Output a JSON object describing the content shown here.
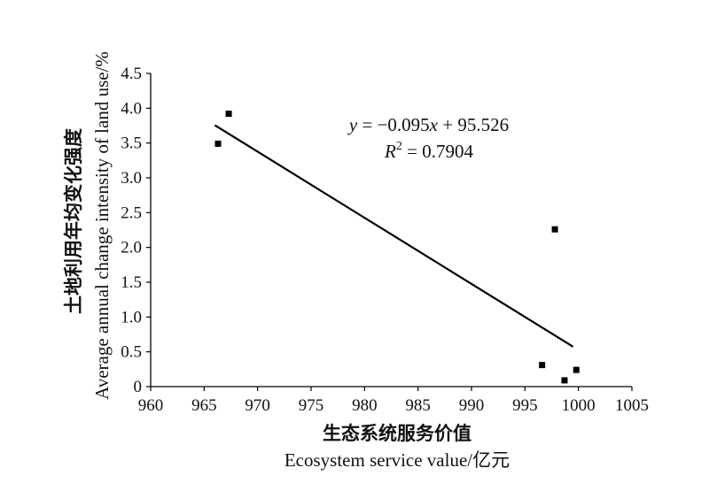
{
  "chart_data": {
    "type": "scatter",
    "title": "",
    "xlabel_cn": "生态系统服务价值",
    "xlabel_en": "Ecosystem service value/亿元",
    "ylabel_cn": "土地利用年均变化强度",
    "ylabel_en": "Average annual change intensity of land use/%",
    "xlim": [
      960,
      1005
    ],
    "ylim": [
      0,
      4.5
    ],
    "x_ticks": [
      960,
      965,
      970,
      975,
      980,
      985,
      990,
      995,
      1000,
      1005
    ],
    "x_tick_labels": [
      "960",
      "965",
      "970",
      "975",
      "980",
      "985",
      "990",
      "995",
      "1000",
      "1005"
    ],
    "y_ticks": [
      0,
      0.5,
      1.0,
      1.5,
      2.0,
      2.5,
      3.0,
      3.5,
      4.0,
      4.5
    ],
    "y_tick_labels": [
      "0",
      "0.5",
      "1.0",
      "1.5",
      "2.0",
      "2.5",
      "3.0",
      "3.5",
      "4.0",
      "4.5"
    ],
    "grid": false,
    "legend": "none",
    "points": [
      {
        "x": 966.3,
        "y": 3.49
      },
      {
        "x": 967.3,
        "y": 3.92
      },
      {
        "x": 996.6,
        "y": 0.31
      },
      {
        "x": 997.8,
        "y": 2.26
      },
      {
        "x": 998.7,
        "y": 0.09
      },
      {
        "x": 999.8,
        "y": 0.24
      }
    ],
    "trendline": {
      "slope": -0.095,
      "intercept": 95.526,
      "x_range": [
        966,
        999.5
      ],
      "equation_parts": {
        "y": "y",
        "eq": " = −0.095",
        "x": "x",
        "rest": " + 95.526"
      },
      "r2_parts": {
        "R": "R",
        "sup": "2",
        "rest": " = 0.7904"
      }
    },
    "colors": {
      "marker": "#000000",
      "line": "#000000",
      "axis": "#000000"
    }
  }
}
